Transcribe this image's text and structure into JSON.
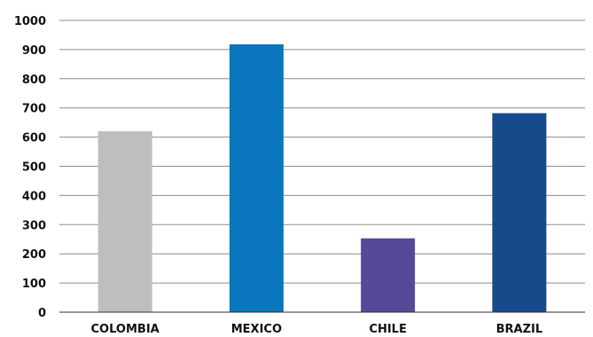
{
  "chart_data": {
    "type": "bar",
    "title": "",
    "xlabel": "",
    "ylabel": "",
    "categories": [
      "COLOMBIA",
      "MEXICO",
      "CHILE",
      "BRAZIL"
    ],
    "values": [
      620,
      918,
      253,
      682
    ],
    "bar_colors": [
      "#bdbec0",
      "#0b75bd",
      "#564a98",
      "#174a8b"
    ],
    "ylim": [
      0,
      1000
    ],
    "yticks": [
      0,
      100,
      200,
      300,
      400,
      500,
      600,
      700,
      800,
      900,
      1000
    ],
    "grid": true
  }
}
